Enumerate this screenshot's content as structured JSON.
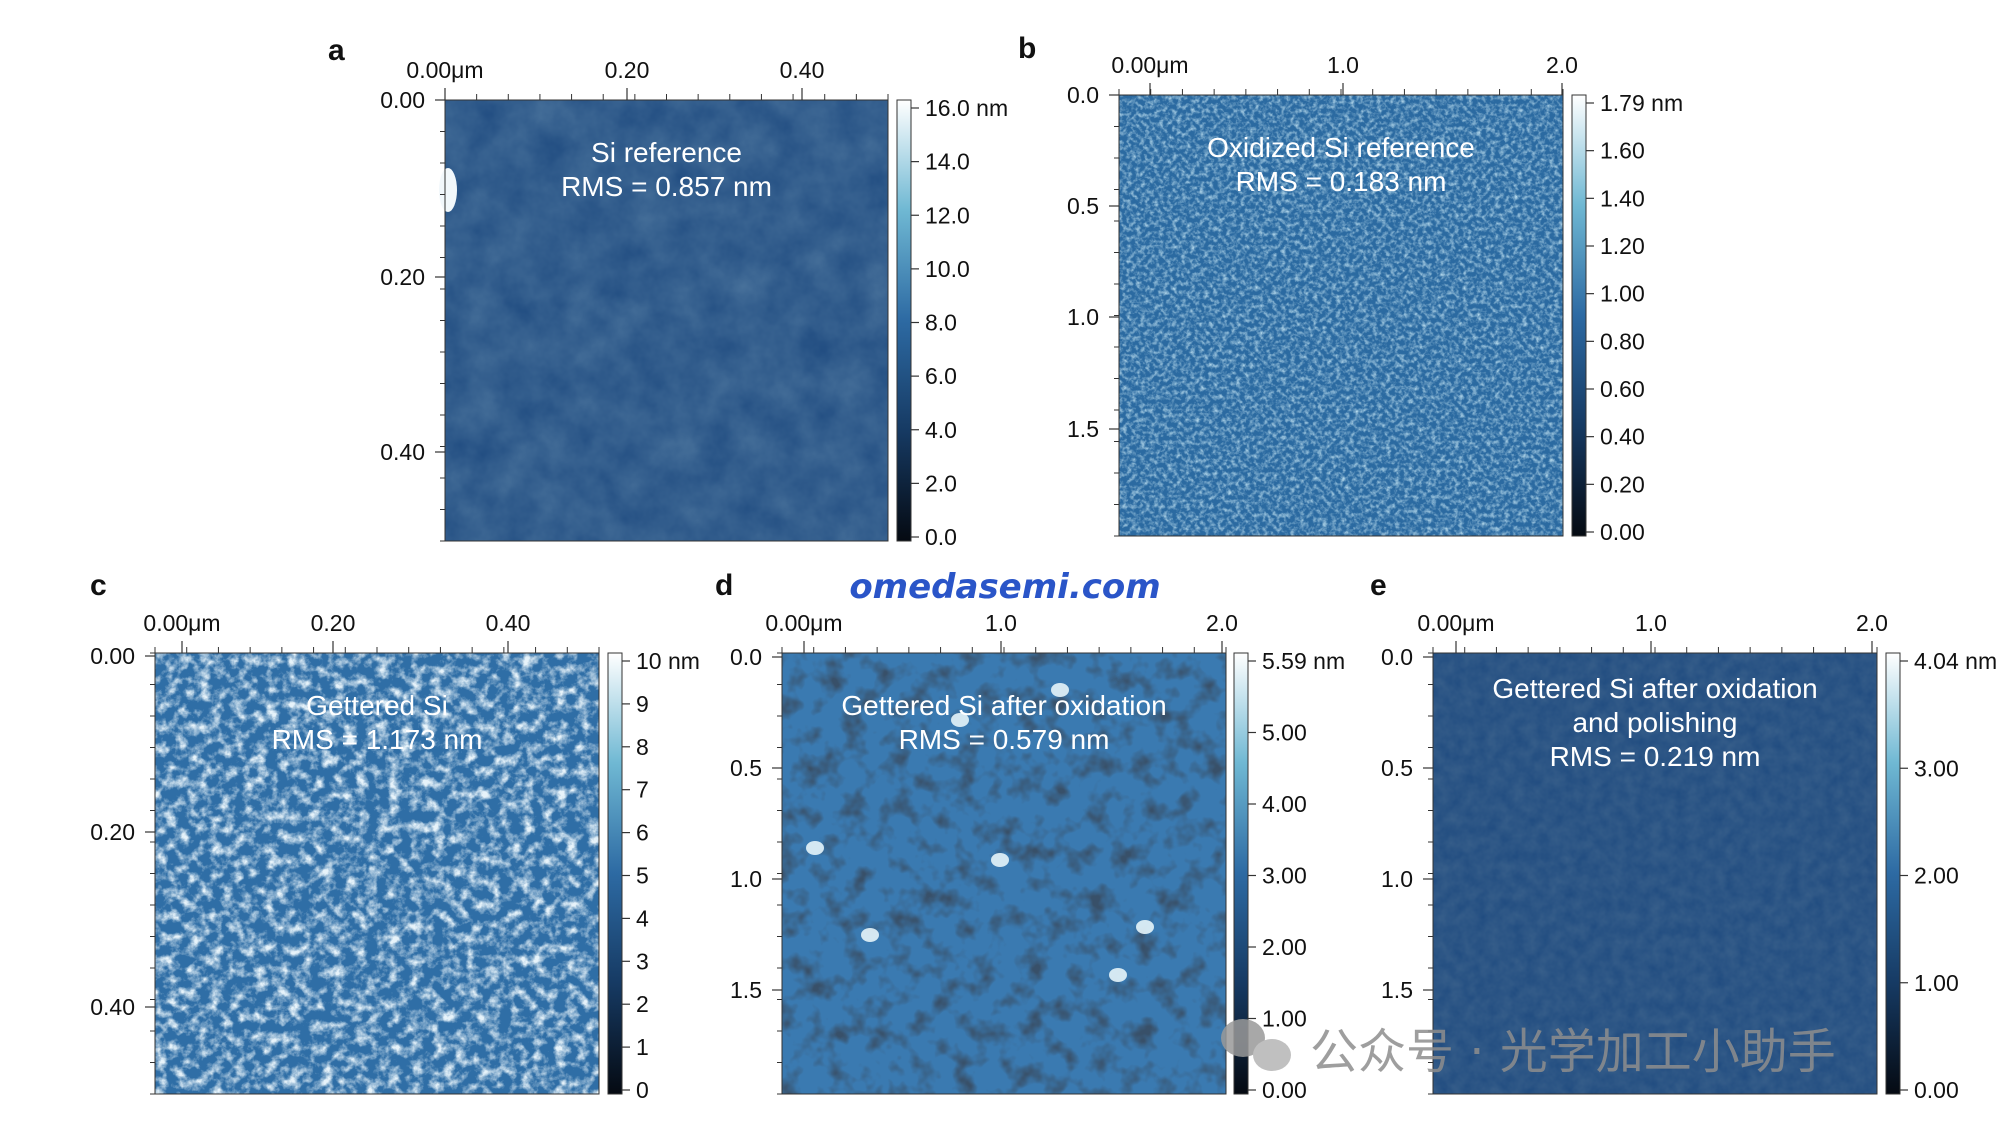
{
  "panels": [
    {
      "id": "a",
      "label": "a",
      "x_ticks": [
        "0.00μm",
        "0.20",
        "0.40"
      ],
      "y_ticks": [
        "0.00",
        "0.20",
        "0.40"
      ],
      "colorbar_ticks": [
        "16.0 nm",
        "14.0",
        "12.0",
        "10.0",
        "8.0",
        "6.0",
        "4.0",
        "2.0",
        "0.0"
      ],
      "annotation": [
        "Si reference",
        "RMS = 0.857 nm"
      ]
    },
    {
      "id": "b",
      "label": "b",
      "x_ticks": [
        "0.00μm",
        "1.0",
        "2.0"
      ],
      "y_ticks": [
        "0.0",
        "0.5",
        "1.0",
        "1.5"
      ],
      "colorbar_ticks": [
        "1.79 nm",
        "1.60",
        "1.40",
        "1.20",
        "1.00",
        "0.80",
        "0.60",
        "0.40",
        "0.20",
        "0.00"
      ],
      "annotation": [
        "Oxidized Si reference",
        "RMS = 0.183 nm"
      ]
    },
    {
      "id": "c",
      "label": "c",
      "x_ticks": [
        "0.00μm",
        "0.20",
        "0.40"
      ],
      "y_ticks": [
        "0.00",
        "0.20",
        "0.40"
      ],
      "colorbar_ticks": [
        "10 nm",
        "9",
        "8",
        "7",
        "6",
        "5",
        "4",
        "3",
        "2",
        "1",
        "0"
      ],
      "annotation": [
        "Gettered Si",
        "RMS = 1.173 nm"
      ]
    },
    {
      "id": "d",
      "label": "d",
      "x_ticks": [
        "0.00μm",
        "1.0",
        "2.0"
      ],
      "y_ticks": [
        "0.0",
        "0.5",
        "1.0",
        "1.5"
      ],
      "colorbar_ticks": [
        "5.59 nm",
        "5.00",
        "4.00",
        "3.00",
        "2.00",
        "1.00",
        "0.00"
      ],
      "annotation": [
        "Gettered Si after oxidation",
        "RMS = 0.579 nm"
      ]
    },
    {
      "id": "e",
      "label": "e",
      "x_ticks": [
        "0.00μm",
        "1.0",
        "2.0"
      ],
      "y_ticks": [
        "0.0",
        "0.5",
        "1.0",
        "1.5"
      ],
      "colorbar_ticks": [
        "4.04 nm",
        "3.00",
        "2.00",
        "1.00",
        "0.00"
      ],
      "annotation": [
        "Gettered Si after oxidation",
        "and polishing",
        "RMS = 0.219 nm"
      ]
    }
  ],
  "watermark_url": "omedasemi.com",
  "watermark_account": "公众号 · 光学加工小助手",
  "colors": {
    "afm_dark": "#0b1a2e",
    "afm_mid": "#2d6aa3",
    "afm_light": "#f2f8fb",
    "watermark_blue": "#2a55c8"
  }
}
